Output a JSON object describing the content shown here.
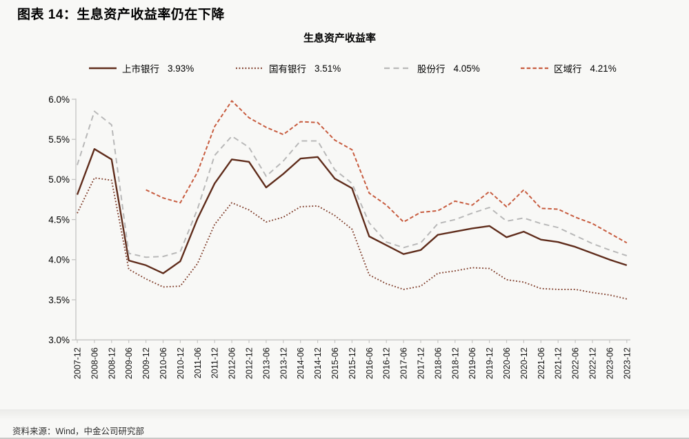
{
  "figure_title": "图表 14：生息资产收益率仍在下降",
  "source_note": "资料来源：Wind，中金公司研究部",
  "chart_data": {
    "type": "line",
    "title": "生息资产收益率",
    "xlabel": "",
    "ylabel": "",
    "unit": "%",
    "grid": false,
    "legend_position": "top",
    "ylim": [
      3.0,
      6.0
    ],
    "y_ticks": [
      "6.0%",
      "5.5%",
      "5.0%",
      "4.5%",
      "4.0%",
      "3.5%",
      "3.0%"
    ],
    "x_labels": [
      "2007-12",
      "2008-06",
      "2008-12",
      "2009-06",
      "2009-12",
      "2010-06",
      "2010-12",
      "2011-06",
      "2011-12",
      "2012-06",
      "2012-12",
      "2013-06",
      "2013-12",
      "2014-06",
      "2014-12",
      "2015-06",
      "2015-12",
      "2016-06",
      "2016-12",
      "2017-06",
      "2017-12",
      "2018-06",
      "2018-12",
      "2019-06",
      "2019-12",
      "2020-06",
      "2020-12",
      "2021-06",
      "2021-12",
      "2022-06",
      "2022-12",
      "2023-06",
      "2023-12"
    ],
    "series": [
      {
        "name": "上市银行",
        "latest_label": "3.93%",
        "color": "#5f2c1b",
        "dash": "solid",
        "width": 2.4,
        "values": [
          4.81,
          5.38,
          5.25,
          3.99,
          3.93,
          3.83,
          3.98,
          4.51,
          4.95,
          5.25,
          5.22,
          4.9,
          5.07,
          5.26,
          5.28,
          5.01,
          4.89,
          4.29,
          4.18,
          4.07,
          4.12,
          4.31,
          4.35,
          4.39,
          4.42,
          4.28,
          4.35,
          4.25,
          4.22,
          4.16,
          4.08,
          4.0,
          3.93
        ]
      },
      {
        "name": "国有银行",
        "latest_label": "3.51%",
        "color": "#7e3b28",
        "dash": "dotted",
        "width": 1.9,
        "values": [
          4.58,
          5.02,
          4.99,
          3.88,
          3.76,
          3.66,
          3.67,
          3.95,
          4.44,
          4.71,
          4.62,
          4.47,
          4.53,
          4.66,
          4.67,
          4.55,
          4.38,
          3.81,
          3.7,
          3.63,
          3.67,
          3.83,
          3.86,
          3.9,
          3.89,
          3.75,
          3.72,
          3.64,
          3.63,
          3.63,
          3.59,
          3.56,
          3.51
        ]
      },
      {
        "name": "股份行",
        "latest_label": "4.05%",
        "color": "#b8b8b8",
        "dash": "long-dash",
        "width": 2.0,
        "values": [
          5.18,
          5.85,
          5.68,
          4.08,
          4.03,
          4.04,
          4.1,
          4.63,
          5.3,
          5.54,
          5.4,
          5.04,
          5.23,
          5.48,
          5.48,
          5.12,
          4.95,
          4.46,
          4.22,
          4.15,
          4.21,
          4.45,
          4.5,
          4.58,
          4.65,
          4.48,
          4.52,
          4.45,
          4.4,
          4.3,
          4.2,
          4.12,
          4.05
        ]
      },
      {
        "name": "区域行",
        "latest_label": "4.21%",
        "color": "#c75b3e",
        "dash": "dash",
        "width": 2.0,
        "values": [
          null,
          null,
          null,
          null,
          4.87,
          4.77,
          4.71,
          5.09,
          5.66,
          5.98,
          5.77,
          5.65,
          5.56,
          5.72,
          5.71,
          5.49,
          5.37,
          4.83,
          4.68,
          4.47,
          4.59,
          4.61,
          4.73,
          4.68,
          4.85,
          4.66,
          4.87,
          4.64,
          4.63,
          4.53,
          4.45,
          4.33,
          4.21
        ]
      }
    ]
  }
}
